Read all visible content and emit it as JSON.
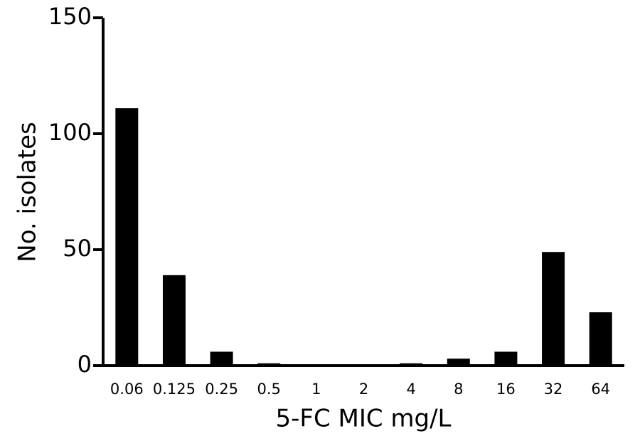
{
  "chart_data": {
    "type": "bar",
    "x_label": "5-FC MIC mg/L",
    "y_label": "No. isolates",
    "categories": [
      "0.06",
      "0.125",
      "0.25",
      "0.5",
      "1",
      "2",
      "4",
      "8",
      "16",
      "32",
      "64"
    ],
    "values": [
      111,
      39,
      6,
      1,
      0,
      0,
      1,
      3,
      6,
      49,
      23
    ],
    "color": "#000000",
    "ylim": [
      0,
      150
    ],
    "yticks": [
      0,
      50,
      100,
      150
    ],
    "grid": false
  }
}
